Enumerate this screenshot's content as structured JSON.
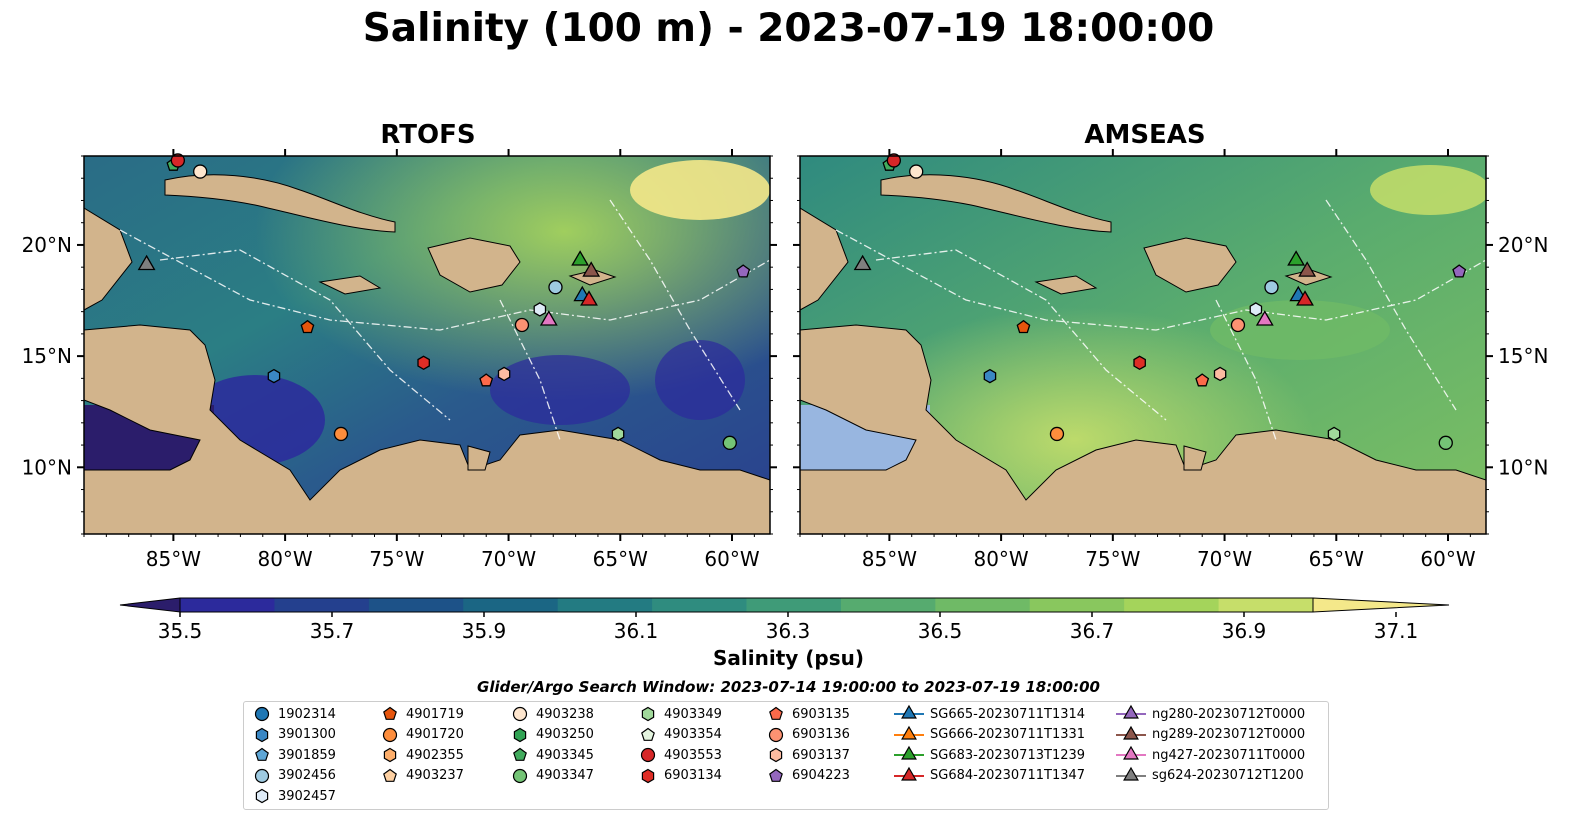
{
  "title": "Salinity (100 m) - 2023-07-19 18:00:00",
  "panels": [
    {
      "title": "RTOFS"
    },
    {
      "title": "AMSEAS"
    }
  ],
  "axes": {
    "lon_range": [
      -89,
      -58.3
    ],
    "lat_range": [
      7,
      24
    ],
    "lon_ticks": [
      "85°W",
      "80°W",
      "75°W",
      "70°W",
      "65°W",
      "60°W"
    ],
    "lon_tick_values": [
      -85,
      -80,
      -75,
      -70,
      -65,
      -60
    ],
    "lat_ticks": [
      "20°N",
      "15°N",
      "10°N"
    ],
    "lat_tick_values": [
      20,
      15,
      10
    ]
  },
  "colorbar": {
    "label": "Salinity (psu)",
    "min": 35.4,
    "max": 37.2,
    "ticks": [
      "35.5",
      "35.7",
      "35.9",
      "36.1",
      "36.3",
      "36.5",
      "36.7",
      "36.9",
      "37.1"
    ],
    "tick_values": [
      35.5,
      35.7,
      35.9,
      36.1,
      36.3,
      36.5,
      36.7,
      36.9,
      37.1
    ],
    "colors": [
      "#2b1d6b",
      "#2c2a9c",
      "#24408e",
      "#1d5288",
      "#1b6684",
      "#237b82",
      "#2f8c7f",
      "#3f9b78",
      "#56ab6f",
      "#6fba66",
      "#89c75e",
      "#a4d45b",
      "#c6de6a",
      "#f4e88a"
    ],
    "extend": "both"
  },
  "land_color": "#d2b48c",
  "shelf_color": "#98b6e0",
  "search_window": "Glider/Argo Search Window: 2023-07-14 19:00:00 to 2023-07-19 18:00:00",
  "legend": {
    "items": [
      {
        "label": "1902314",
        "marker": "circle",
        "color": "#1f77b4"
      },
      {
        "label": "3901300",
        "marker": "hexagon",
        "color": "#3a87c4"
      },
      {
        "label": "3901859",
        "marker": "pentagon",
        "color": "#5ea6d6"
      },
      {
        "label": "3902456",
        "marker": "circle",
        "color": "#9ecae1"
      },
      {
        "label": "3902457",
        "marker": "hexagon",
        "color": "#deebf7"
      },
      {
        "label": "4901719",
        "marker": "pentagon",
        "color": "#e6550d"
      },
      {
        "label": "4901720",
        "marker": "circle",
        "color": "#fd8d3c"
      },
      {
        "label": "4902355",
        "marker": "hexagon",
        "color": "#fdae6b"
      },
      {
        "label": "4903237",
        "marker": "pentagon",
        "color": "#fdd0a2"
      },
      {
        "label": "4903238",
        "marker": "circle",
        "color": "#fee6ce"
      },
      {
        "label": "4903250",
        "marker": "hexagon",
        "color": "#31a354"
      },
      {
        "label": "4903345",
        "marker": "pentagon",
        "color": "#41ab5d"
      },
      {
        "label": "4903347",
        "marker": "circle",
        "color": "#74c476"
      },
      {
        "label": "4903349",
        "marker": "hexagon",
        "color": "#a1d99b"
      },
      {
        "label": "4903354",
        "marker": "pentagon",
        "color": "#e5f5e0"
      },
      {
        "label": "4903553",
        "marker": "circle",
        "color": "#d62728"
      },
      {
        "label": "6903134",
        "marker": "hexagon",
        "color": "#de2d26"
      },
      {
        "label": "6903135",
        "marker": "pentagon",
        "color": "#fb6a4a"
      },
      {
        "label": "6903136",
        "marker": "circle",
        "color": "#fc9272"
      },
      {
        "label": "6903137",
        "marker": "hexagon",
        "color": "#fcbba1"
      },
      {
        "label": "6904223",
        "marker": "pentagon",
        "color": "#9467bd"
      },
      {
        "label": "SG665-20230711T1314",
        "marker": "triangle",
        "color": "#1f77b4"
      },
      {
        "label": "SG666-20230711T1331",
        "marker": "triangle",
        "color": "#ff7f0e"
      },
      {
        "label": "SG683-20230713T1239",
        "marker": "triangle",
        "color": "#2ca02c"
      },
      {
        "label": "SG684-20230711T1347",
        "marker": "triangle",
        "color": "#d62728"
      },
      {
        "label": "ng280-20230712T0000",
        "marker": "triangle",
        "color": "#9467bd"
      },
      {
        "label": "ng289-20230712T0000",
        "marker": "triangle",
        "color": "#8c564b"
      },
      {
        "label": "ng427-20230711T0000",
        "marker": "triangle",
        "color": "#e377c2"
      },
      {
        "label": "sg624-20230712T1200",
        "marker": "triangle",
        "color": "#7f7f7f"
      }
    ]
  },
  "observations": [
    {
      "id": "4903238",
      "lon": -83.8,
      "lat": 23.3
    },
    {
      "id": "4903345",
      "lon": -85.0,
      "lat": 23.6
    },
    {
      "id": "4903553",
      "lon": -84.8,
      "lat": 23.8
    },
    {
      "id": "sg624-20230712T1200",
      "lon": -86.2,
      "lat": 19.1
    },
    {
      "id": "4901719",
      "lon": -79.0,
      "lat": 16.3
    },
    {
      "id": "3902456",
      "lon": -67.9,
      "lat": 18.1
    },
    {
      "id": "3902457",
      "lon": -68.6,
      "lat": 17.1
    },
    {
      "id": "6903136",
      "lon": -69.4,
      "lat": 16.4
    },
    {
      "id": "ng427-20230711T0000",
      "lon": -68.2,
      "lat": 16.6
    },
    {
      "id": "SG683-20230713T1239",
      "lon": -66.8,
      "lat": 19.3
    },
    {
      "id": "ng289-20230712T0000",
      "lon": -66.3,
      "lat": 18.8
    },
    {
      "id": "SG665-20230711T1314",
      "lon": -66.7,
      "lat": 17.7
    },
    {
      "id": "SG684-20230711T1347",
      "lon": -66.4,
      "lat": 17.5
    },
    {
      "id": "6904223",
      "lon": -59.5,
      "lat": 18.8
    },
    {
      "id": "6903134",
      "lon": -73.8,
      "lat": 14.7
    },
    {
      "id": "6903135",
      "lon": -71.0,
      "lat": 13.9
    },
    {
      "id": "6903137",
      "lon": -70.2,
      "lat": 14.2
    },
    {
      "id": "3901300",
      "lon": -80.5,
      "lat": 14.1
    },
    {
      "id": "4901720",
      "lon": -77.5,
      "lat": 11.5
    },
    {
      "id": "4903349",
      "lon": -65.1,
      "lat": 11.5
    },
    {
      "id": "4903347",
      "lon": -60.1,
      "lat": 11.1
    }
  ]
}
